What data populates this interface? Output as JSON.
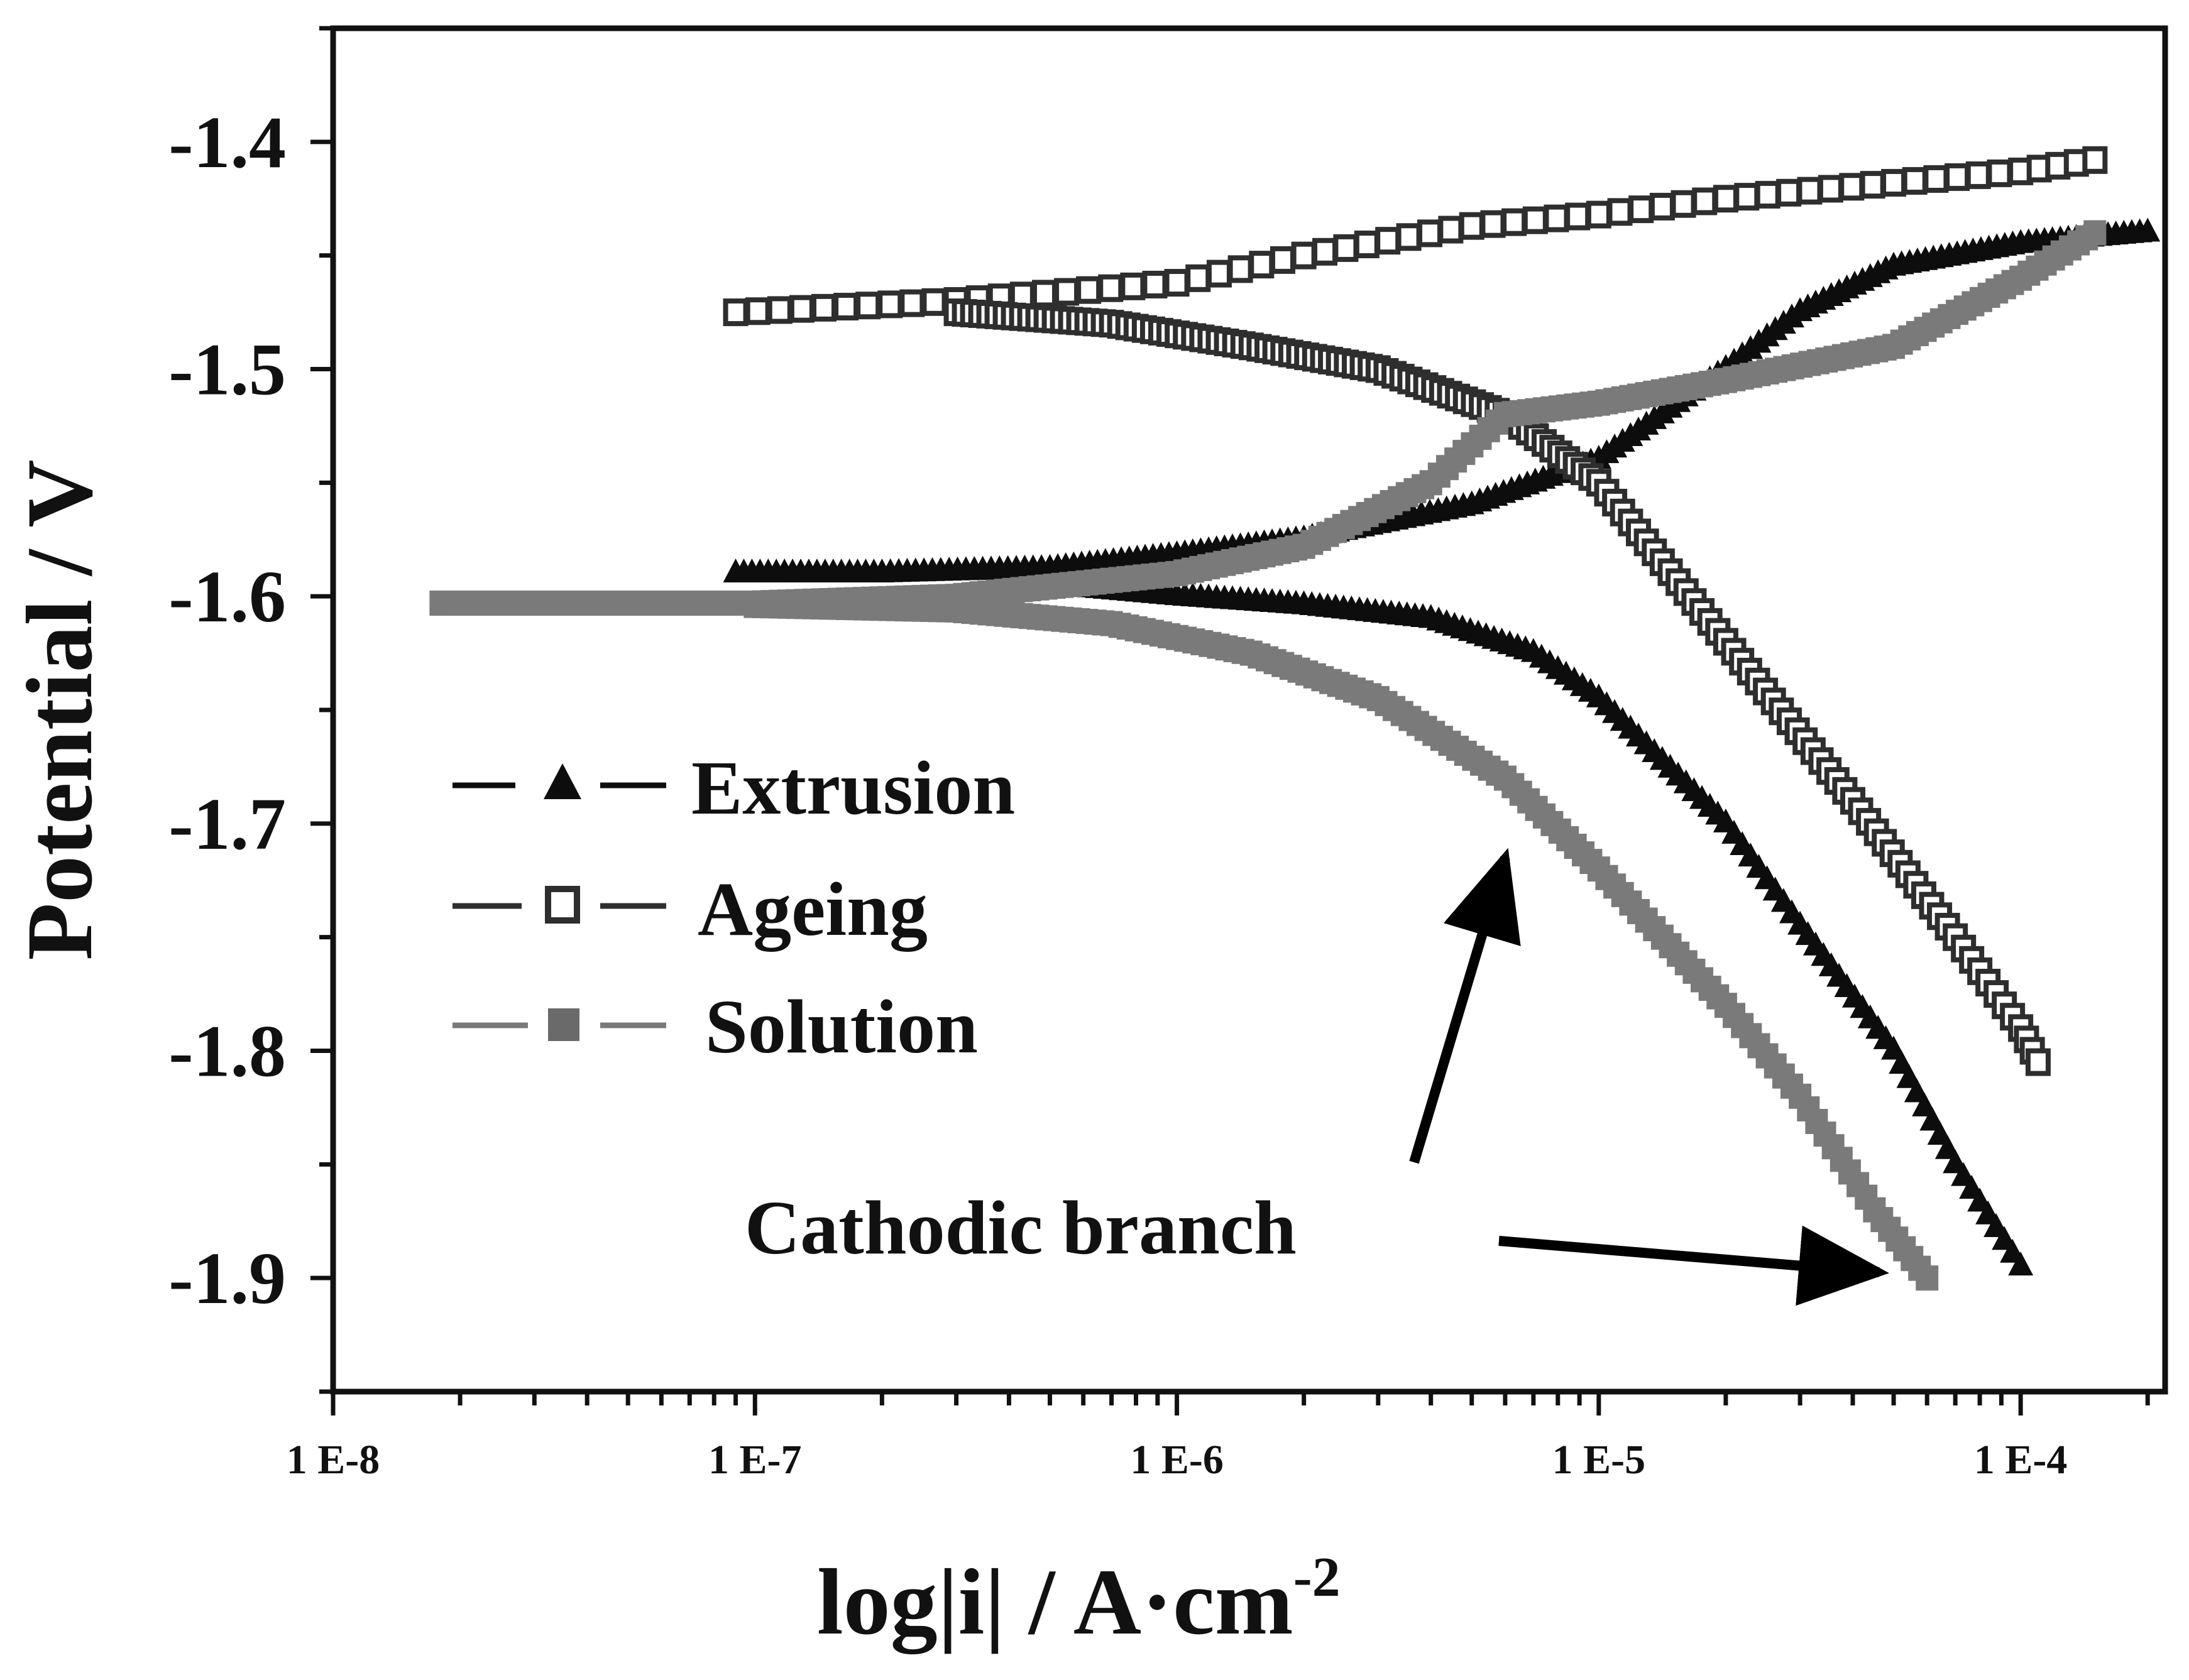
{
  "chart_data": {
    "type": "scatter",
    "xlabel": "log|i| / A·cm",
    "xlabel_superscript": "-2",
    "ylabel": "Potential / V",
    "xscale": "log",
    "xlim": [
      1e-08,
      0.00022
    ],
    "ylim": [
      -1.95,
      -1.35
    ],
    "xtick_values": [
      1e-08,
      1e-07,
      1e-06,
      1e-05,
      0.0001
    ],
    "xtick_labels": [
      "1 E-8",
      "1 E-7",
      "1 E-6",
      "1 E-5",
      "1 E-4"
    ],
    "ytick_values": [
      -1.4,
      -1.5,
      -1.6,
      -1.7,
      -1.8,
      -1.9
    ],
    "ytick_labels": [
      "-1.4",
      "-1.5",
      "-1.6",
      "-1.7",
      "-1.8",
      "-1.9"
    ],
    "grid": false,
    "legend_position": "middle-left",
    "series": [
      {
        "name": "Extrusion",
        "marker": "filled-triangle",
        "color": "#0d0d0d",
        "anodic": {
          "x": [
            9e-08,
            2e-07,
            5e-07,
            1e-06,
            2e-06,
            5e-06,
            1e-05,
            2e-05,
            3e-05,
            5e-05,
            0.0001,
            0.0002
          ],
          "y": [
            -1.59,
            -1.59,
            -1.588,
            -1.582,
            -1.575,
            -1.56,
            -1.54,
            -1.5,
            -1.475,
            -1.455,
            -1.445,
            -1.44
          ]
        },
        "cathodic": {
          "x": [
            5e-07,
            1e-06,
            2e-06,
            4e-06,
            7e-06,
            1e-05,
            2e-05,
            3e-05,
            5e-05,
            7e-05,
            0.0001
          ],
          "y": [
            -1.595,
            -1.6,
            -1.604,
            -1.61,
            -1.625,
            -1.645,
            -1.7,
            -1.745,
            -1.8,
            -1.85,
            -1.895
          ]
        }
      },
      {
        "name": "Ageing",
        "marker": "open-square",
        "color": "#2e2e2e",
        "anodic": {
          "x": [
            9e-08,
            3e-07,
            1e-06,
            2e-06,
            5e-06,
            1e-05,
            2e-05,
            5e-05,
            0.0001,
            0.00015
          ],
          "y": [
            -1.475,
            -1.47,
            -1.462,
            -1.45,
            -1.437,
            -1.432,
            -1.425,
            -1.418,
            -1.413,
            -1.408
          ]
        },
        "cathodic": {
          "x": [
            3e-07,
            7e-07,
            1.5e-06,
            3e-06,
            6e-06,
            1e-05,
            2e-05,
            4e-05,
            7e-05,
            0.0001,
            0.00011
          ],
          "y": [
            -1.475,
            -1.48,
            -1.49,
            -1.5,
            -1.52,
            -1.55,
            -1.62,
            -1.69,
            -1.75,
            -1.79,
            -1.805
          ]
        }
      },
      {
        "name": "Solution",
        "marker": "filled-square",
        "color": "#7a7a7a",
        "anodic": {
          "x": [
            1.8e-08,
            1e-07,
            3e-07,
            1e-06,
            2e-06,
            4e-06,
            6e-06,
            1e-05,
            2e-05,
            5e-05,
            0.0001,
            0.00015
          ],
          "y": [
            -1.603,
            -1.603,
            -1.6,
            -1.59,
            -1.578,
            -1.55,
            -1.52,
            -1.515,
            -1.505,
            -1.49,
            -1.46,
            -1.44
          ]
        },
        "cathodic": {
          "x": [
            1e-07,
            3e-07,
            7e-07,
            1.5e-06,
            3e-06,
            6e-06,
            1e-05,
            2e-05,
            3e-05,
            4.5e-05,
            6e-05
          ],
          "y": [
            -1.604,
            -1.606,
            -1.612,
            -1.625,
            -1.645,
            -1.68,
            -1.72,
            -1.78,
            -1.82,
            -1.87,
            -1.9
          ]
        }
      }
    ],
    "annotations": [
      {
        "text": "Cathodic branch"
      }
    ]
  }
}
